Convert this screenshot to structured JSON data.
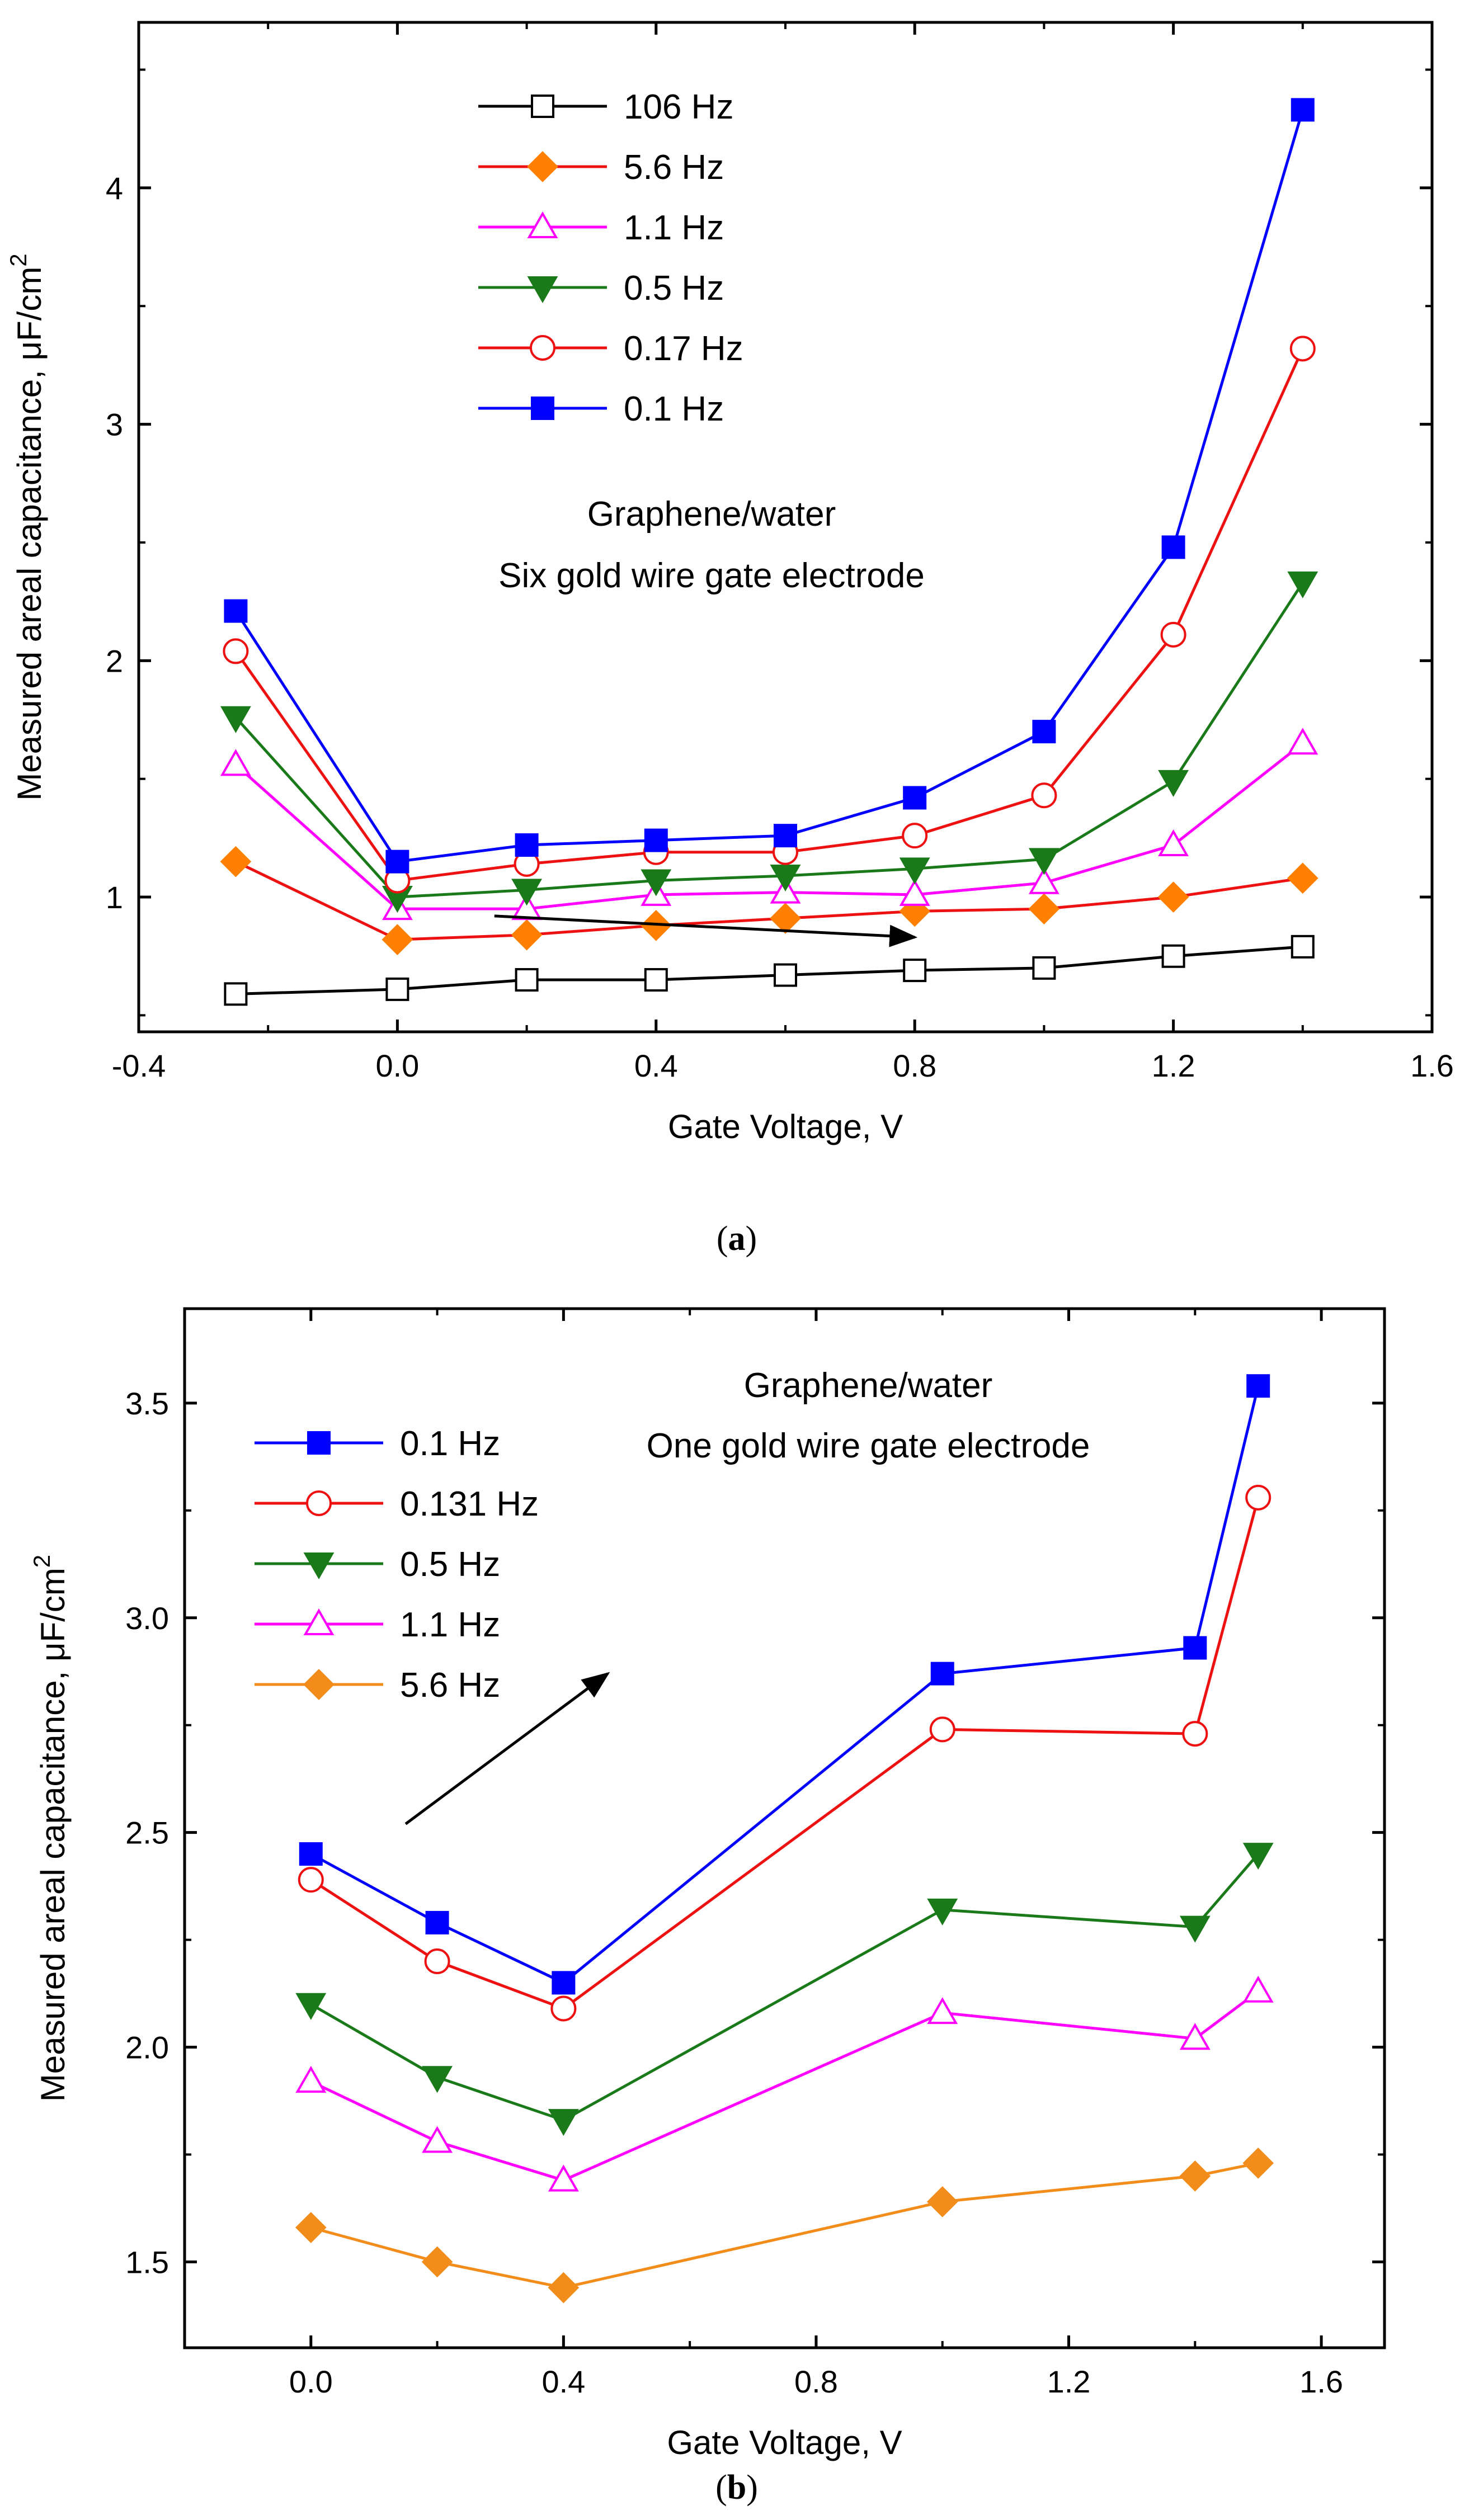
{
  "figure": {
    "panels": [
      "a",
      "b"
    ]
  },
  "chart_data": [
    {
      "type": "line",
      "panel_label": "a",
      "xlabel": "Gate Voltage, V",
      "ylabel": "Measured areal capacitance, μF/cm",
      "ylabel_superscript": "2",
      "xlim": [
        -0.4,
        1.6
      ],
      "ylim": [
        0.43,
        4.7
      ],
      "xticks": [
        -0.4,
        0.0,
        0.4,
        0.8,
        1.2,
        1.6
      ],
      "xtick_labels": [
        "-0.4",
        "0.0",
        "0.4",
        "0.8",
        "1.2",
        "1.6"
      ],
      "yticks": [
        1,
        2,
        3,
        4
      ],
      "ytick_labels": [
        "1",
        "2",
        "3",
        "4"
      ],
      "annotation_lines": [
        "Graphene/water",
        "Six gold wire gate electrode"
      ],
      "legend_position": "top-left",
      "arrow": {
        "from": [
          0.15,
          0.92
        ],
        "to": [
          0.8,
          0.83
        ]
      },
      "x": [
        -0.25,
        0.0,
        0.2,
        0.4,
        0.6,
        0.8,
        1.0,
        1.2,
        1.4
      ],
      "series": [
        {
          "name": "106 Hz",
          "color": "#000000",
          "marker": "square-open",
          "values": [
            0.59,
            0.61,
            0.65,
            0.65,
            0.67,
            0.69,
            0.7,
            0.75,
            0.79
          ]
        },
        {
          "name": "5.6 Hz",
          "color": "#ff7f00",
          "line_color": "#ee1111",
          "marker": "diamond-filled",
          "values": [
            1.15,
            0.82,
            0.84,
            0.88,
            0.91,
            0.94,
            0.95,
            1.0,
            1.08
          ]
        },
        {
          "name": "1.1 Hz",
          "color": "#ff00ff",
          "marker": "triangle-up-open",
          "values": [
            1.56,
            0.95,
            0.95,
            1.01,
            1.02,
            1.01,
            1.06,
            1.22,
            1.65
          ]
        },
        {
          "name": "0.5 Hz",
          "color": "#1a7a1a",
          "marker": "triangle-down-filled",
          "values": [
            1.76,
            1.0,
            1.03,
            1.07,
            1.09,
            1.12,
            1.16,
            1.49,
            2.33
          ]
        },
        {
          "name": "0.17 Hz",
          "color": "#ee1111",
          "marker": "circle-open",
          "values": [
            2.04,
            1.07,
            1.14,
            1.19,
            1.19,
            1.26,
            1.43,
            2.11,
            3.32
          ]
        },
        {
          "name": "0.1 Hz",
          "color": "#0000ff",
          "marker": "square-filled",
          "values": [
            2.21,
            1.15,
            1.22,
            1.24,
            1.26,
            1.42,
            1.7,
            2.48,
            4.33
          ]
        }
      ]
    },
    {
      "type": "line",
      "panel_label": "b",
      "xlabel": "Gate Voltage, V",
      "ylabel": "Measured areal capacitance, μF/cm",
      "ylabel_superscript": "2",
      "xlim": [
        -0.2,
        1.7
      ],
      "ylim": [
        1.3,
        3.72
      ],
      "xticks": [
        0.0,
        0.4,
        0.8,
        1.2,
        1.6
      ],
      "xtick_labels": [
        "0.0",
        "0.4",
        "0.8",
        "1.2",
        "1.6"
      ],
      "yticks": [
        1.5,
        2.0,
        2.5,
        3.0,
        3.5
      ],
      "ytick_labels": [
        "1.5",
        "2.0",
        "2.5",
        "3.0",
        "3.5"
      ],
      "annotation_lines": [
        "Graphene/water",
        "One gold wire gate electrode"
      ],
      "legend_position": "top-left",
      "arrow": {
        "from": [
          0.15,
          2.52
        ],
        "to": [
          0.47,
          2.87
        ]
      },
      "x": [
        0.0,
        0.2,
        0.4,
        1.0,
        1.4,
        1.5
      ],
      "series": [
        {
          "name": "0.1 Hz",
          "color": "#0000ff",
          "marker": "square-filled",
          "values": [
            2.45,
            2.29,
            2.15,
            2.87,
            2.93,
            3.54
          ]
        },
        {
          "name": "0.131 Hz",
          "color": "#ee1111",
          "marker": "circle-open",
          "values": [
            2.39,
            2.2,
            2.09,
            2.74,
            2.73,
            3.28
          ]
        },
        {
          "name": "0.5 Hz",
          "color": "#1a7a1a",
          "marker": "triangle-down-filled",
          "values": [
            2.1,
            1.93,
            1.83,
            2.32,
            2.28,
            2.45
          ]
        },
        {
          "name": "1.1 Hz",
          "color": "#ff00ff",
          "marker": "triangle-up-open",
          "values": [
            1.92,
            1.78,
            1.69,
            2.08,
            2.02,
            2.13
          ]
        },
        {
          "name": "5.6 Hz",
          "color": "#f28c1a",
          "marker": "diamond-filled",
          "values": [
            1.58,
            1.5,
            1.44,
            1.64,
            1.7,
            1.73
          ]
        }
      ]
    }
  ]
}
